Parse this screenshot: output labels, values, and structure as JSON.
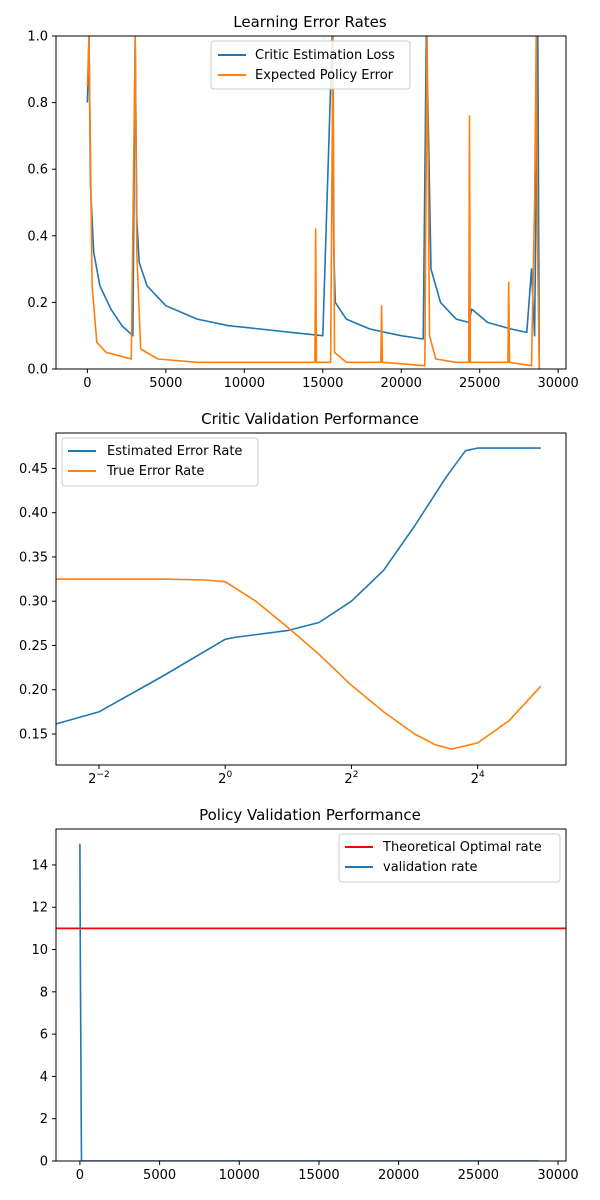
{
  "chart_data": [
    {
      "type": "line",
      "title": "Learning Error Rates",
      "xlabel": "",
      "ylabel": "",
      "xlim": [
        -2000,
        30500
      ],
      "ylim": [
        0,
        1.0
      ],
      "xticks": [
        0,
        5000,
        10000,
        15000,
        20000,
        25000,
        30000
      ],
      "xtick_labels": [
        "0",
        "5000",
        "10000",
        "15000",
        "20000",
        "25000",
        "30000"
      ],
      "yticks": [
        0,
        0.2,
        0.4,
        0.6,
        0.8,
        1.0
      ],
      "ytick_labels": [
        "0.0",
        "0.2",
        "0.4",
        "0.6",
        "0.8",
        "1.0"
      ],
      "legend": "upper center",
      "grid": false,
      "series": [
        {
          "name": "Critic Estimation Loss",
          "color": "#1f77b4",
          "x": [
            0,
            100,
            200,
            400,
            800,
            1500,
            2200,
            2900,
            3050,
            3150,
            3300,
            3800,
            5000,
            7000,
            9000,
            11000,
            13000,
            15000,
            15600,
            15700,
            15800,
            16500,
            18000,
            20000,
            21400,
            21600,
            21700,
            21900,
            22500,
            23500,
            24300,
            24500,
            25500,
            27000,
            28000,
            28300,
            28500,
            28700,
            28800
          ],
          "y": [
            0.8,
            1.0,
            0.55,
            0.35,
            0.25,
            0.18,
            0.13,
            0.1,
            1.0,
            0.45,
            0.32,
            0.25,
            0.19,
            0.15,
            0.13,
            0.12,
            0.11,
            0.1,
            1.0,
            0.35,
            0.2,
            0.15,
            0.12,
            0.1,
            0.09,
            1.0,
            0.8,
            0.3,
            0.2,
            0.15,
            0.14,
            0.18,
            0.14,
            0.12,
            0.11,
            0.3,
            0.1,
            1.0,
            0.0
          ]
        },
        {
          "name": "Expected Policy Error",
          "color": "#ff7f0e",
          "x": [
            0,
            100,
            300,
            600,
            1200,
            2000,
            2800,
            3050,
            3150,
            3400,
            4500,
            7000,
            10000,
            13000,
            14500,
            14550,
            14600,
            15500,
            15650,
            15750,
            16500,
            18700,
            18750,
            18800,
            21500,
            21650,
            21800,
            22200,
            23500,
            24300,
            24350,
            24400,
            26800,
            26850,
            26900,
            28300,
            28500,
            28600,
            28700,
            28800
          ],
          "y": [
            0.85,
            1.0,
            0.25,
            0.08,
            0.05,
            0.04,
            0.03,
            1.0,
            0.35,
            0.06,
            0.03,
            0.02,
            0.02,
            0.02,
            0.02,
            0.42,
            0.02,
            0.02,
            1.0,
            0.05,
            0.02,
            0.02,
            0.19,
            0.02,
            0.01,
            1.0,
            0.1,
            0.03,
            0.02,
            0.02,
            0.76,
            0.02,
            0.02,
            0.26,
            0.02,
            0.01,
            0.5,
            1.0,
            0.3,
            0.0
          ]
        }
      ]
    },
    {
      "type": "line",
      "title": "Critic Validation Performance",
      "xlabel": "",
      "ylabel": "",
      "xscale": "log2",
      "xlim": [
        0.156,
        42.2
      ],
      "ylim": [
        0.115,
        0.49
      ],
      "xticks": [
        0.25,
        1,
        4,
        16
      ],
      "xtick_labels": [
        "2",
        "2",
        "2",
        "2"
      ],
      "xtick_exponents": [
        "−2",
        "0",
        "2",
        "4"
      ],
      "yticks": [
        0.15,
        0.2,
        0.25,
        0.3,
        0.35,
        0.4,
        0.45
      ],
      "ytick_labels": [
        "0.15",
        "0.20",
        "0.25",
        "0.30",
        "0.35",
        "0.40",
        "0.45"
      ],
      "legend": "upper left",
      "grid": false,
      "series": [
        {
          "name": "Estimated Error Rate",
          "color": "#1f77b4",
          "x": [
            0.125,
            0.25,
            0.5,
            1.0,
            1.1,
            2.0,
            2.8,
            4.0,
            5.7,
            8.0,
            11.3,
            14.0,
            16.0,
            17.4,
            20.0,
            32.0
          ],
          "y": [
            0.155,
            0.175,
            0.215,
            0.257,
            0.259,
            0.267,
            0.276,
            0.3,
            0.335,
            0.385,
            0.44,
            0.47,
            0.473,
            0.473,
            0.473,
            0.473
          ]
        },
        {
          "name": "True Error Rate",
          "color": "#ff7f0e",
          "x": [
            0.125,
            0.5,
            0.8,
            1.0,
            1.4,
            2.0,
            2.8,
            4.0,
            5.7,
            8.0,
            10.0,
            12.0,
            16.0,
            22.6,
            32.0
          ],
          "y": [
            0.325,
            0.325,
            0.324,
            0.322,
            0.3,
            0.27,
            0.24,
            0.205,
            0.175,
            0.15,
            0.138,
            0.133,
            0.14,
            0.165,
            0.204
          ]
        }
      ]
    },
    {
      "type": "line",
      "title": "Policy Validation Performance",
      "xlabel": "",
      "ylabel": "",
      "xlim": [
        -1500,
        30500
      ],
      "ylim": [
        0,
        15.7
      ],
      "xticks": [
        0,
        5000,
        10000,
        15000,
        20000,
        25000,
        30000
      ],
      "xtick_labels": [
        "0",
        "5000",
        "10000",
        "15000",
        "20000",
        "25000",
        "30000"
      ],
      "yticks": [
        0,
        2,
        4,
        6,
        8,
        10,
        12,
        14
      ],
      "ytick_labels": [
        "0",
        "2",
        "4",
        "6",
        "8",
        "10",
        "12",
        "14"
      ],
      "legend": "upper right",
      "grid": false,
      "series": [
        {
          "name": "Theoretical Optimal rate",
          "color": "#ff0000",
          "hline": 11.0
        },
        {
          "name": "validation rate",
          "color": "#1f77b4",
          "x": [
            0,
            20,
            40,
            60,
            80,
            100,
            28800
          ],
          "y": [
            15.0,
            11.0,
            8.0,
            5.0,
            2.0,
            0.0,
            0.0
          ]
        }
      ]
    }
  ]
}
